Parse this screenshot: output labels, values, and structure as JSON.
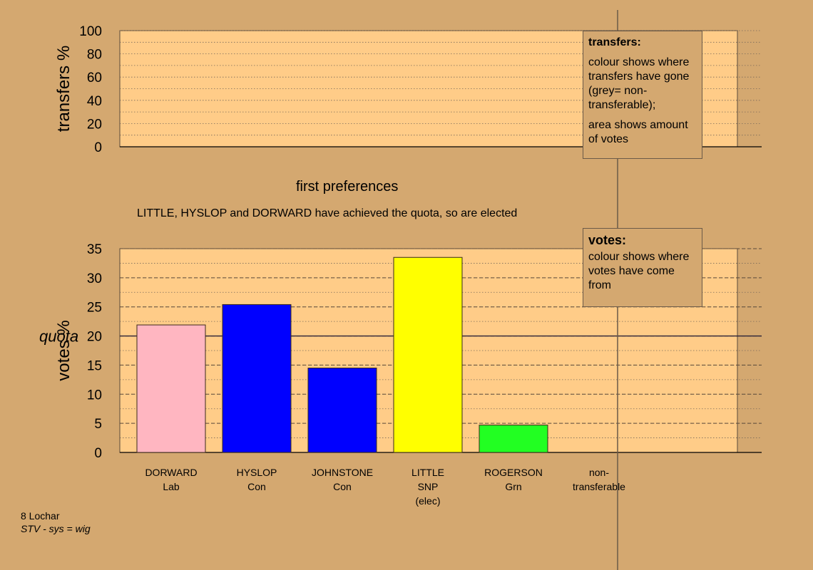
{
  "subtitle": "first preferences",
  "status_note": "LITTLE, HYSLOP and DORWARD have achieved the quota, so are elected",
  "legend_transfers": {
    "heading": "transfers:",
    "line1": "colour shows where transfers have gone (grey= non-transferable);",
    "line2": "area shows amount of votes"
  },
  "legend_votes": {
    "heading": "votes:",
    "line1": "colour shows where votes have come from"
  },
  "footer": {
    "constituency": "8 Lochar",
    "system": "STV - sys = wig"
  },
  "chart_data": [
    {
      "type": "area",
      "ylabel": "transfers %",
      "ylim": [
        0,
        100
      ],
      "yticks": [
        0,
        20,
        40,
        60,
        80,
        100
      ],
      "series": []
    },
    {
      "type": "bar",
      "ylabel": "votes %",
      "ylim": [
        0,
        35
      ],
      "yticks": [
        0,
        5,
        10,
        15,
        20,
        25,
        30,
        35
      ],
      "quota": 20,
      "quota_label": "quota",
      "categories": [
        {
          "name": "DORWARD",
          "party": "Lab",
          "status": ""
        },
        {
          "name": "HYSLOP",
          "party": "Con",
          "status": ""
        },
        {
          "name": "JOHNSTONE",
          "party": "Con",
          "status": ""
        },
        {
          "name": "LITTLE",
          "party": "SNP",
          "status": "(elec)"
        },
        {
          "name": "ROGERSON",
          "party": "Grn",
          "status": ""
        },
        {
          "name": "non-",
          "party": "transferable",
          "status": ""
        }
      ],
      "values": [
        21.9,
        25.4,
        14.5,
        33.5,
        4.7,
        0
      ],
      "colors": [
        "#ffb6c1",
        "#0000ff",
        "#0000ff",
        "#ffff00",
        "#22ff22",
        "#888888"
      ]
    }
  ]
}
